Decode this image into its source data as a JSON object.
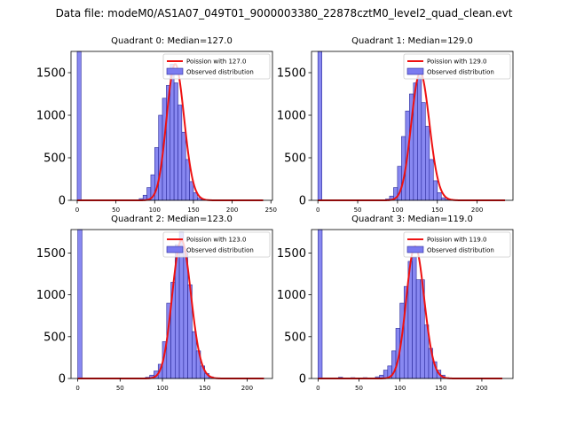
{
  "figure": {
    "title": "Data file: modeM0/AS1A07_049T01_9000003380_22878cztM0_level2_quad_clean.evt"
  },
  "colors": {
    "bar_fill": "#7b7bf0",
    "bar_edge": "#2a2a9a",
    "poisson_line": "#ee1111",
    "axis": "#000000"
  },
  "chart_data": [
    {
      "type": "bar",
      "title": "Quadrant 0: Median=127.0",
      "xlim": [
        -8,
        252
      ],
      "ylim": [
        0,
        1750
      ],
      "xticks": [
        0,
        50,
        100,
        150,
        200,
        250
      ],
      "yticks": [
        0,
        500,
        1000,
        1500
      ],
      "bin_width": 5,
      "series": [
        {
          "name": "Observed distribution",
          "type": "histogram",
          "bin_starts": [
            0,
            80,
            85,
            90,
            95,
            100,
            105,
            110,
            115,
            120,
            125,
            130,
            135,
            140,
            145,
            150,
            155,
            160
          ],
          "counts": [
            1750,
            20,
            60,
            150,
            300,
            620,
            1000,
            1200,
            1350,
            1600,
            1380,
            1120,
            800,
            480,
            220,
            90,
            30,
            10
          ]
        },
        {
          "name": "Poission with 127.0",
          "type": "poisson",
          "mean": 127.0,
          "peak": 1600,
          "x_range": [
            0,
            240
          ]
        }
      ],
      "legend": [
        "Poission with 127.0",
        "Observed distribution"
      ],
      "legend_loc": "upper right"
    },
    {
      "type": "bar",
      "title": "Quadrant 1: Median=129.0",
      "xlim": [
        -8,
        245
      ],
      "ylim": [
        0,
        1750
      ],
      "xticks": [
        0,
        50,
        100,
        150,
        200
      ],
      "yticks": [
        0,
        500,
        1000,
        1500
      ],
      "bin_width": 5,
      "series": [
        {
          "name": "Observed distribution",
          "type": "histogram",
          "bin_starts": [
            0,
            85,
            90,
            95,
            100,
            105,
            110,
            115,
            120,
            125,
            130,
            135,
            140,
            145,
            150,
            155,
            160,
            165
          ],
          "counts": [
            1750,
            15,
            50,
            150,
            400,
            750,
            1050,
            1250,
            1380,
            1450,
            1150,
            870,
            480,
            230,
            90,
            30,
            10,
            3
          ]
        },
        {
          "name": "Poission with 129.0",
          "type": "poisson",
          "mean": 129.0,
          "peak": 1500,
          "x_range": [
            0,
            235
          ]
        }
      ],
      "legend": [
        "Poission with 129.0",
        "Observed distribution"
      ],
      "legend_loc": "upper right"
    },
    {
      "type": "bar",
      "title": "Quadrant 2: Median=123.0",
      "xlim": [
        -8,
        230
      ],
      "ylim": [
        0,
        1780
      ],
      "xticks": [
        0,
        50,
        100,
        150,
        200
      ],
      "yticks": [
        0,
        500,
        1000,
        1500
      ],
      "bin_width": 5,
      "series": [
        {
          "name": "Observed distribution",
          "type": "histogram",
          "bin_starts": [
            0,
            80,
            85,
            90,
            95,
            100,
            105,
            110,
            115,
            120,
            125,
            130,
            135,
            140,
            145,
            150,
            155,
            160
          ],
          "counts": [
            1780,
            15,
            40,
            90,
            170,
            440,
            900,
            1150,
            1600,
            1750,
            1520,
            1120,
            560,
            330,
            150,
            60,
            20,
            5
          ]
        },
        {
          "name": "Poission with 123.0",
          "type": "poisson",
          "mean": 123.0,
          "peak": 1650,
          "x_range": [
            0,
            220
          ]
        }
      ],
      "legend": [
        "Poission with 123.0",
        "Observed distribution"
      ],
      "legend_loc": "upper right"
    },
    {
      "type": "bar",
      "title": "Quadrant 3: Median=119.0",
      "xlim": [
        -8,
        238
      ],
      "ylim": [
        0,
        1780
      ],
      "xticks": [
        0,
        50,
        100,
        150,
        200
      ],
      "yticks": [
        0,
        500,
        1000,
        1500
      ],
      "bin_width": 5,
      "series": [
        {
          "name": "Observed distribution",
          "type": "histogram",
          "bin_starts": [
            0,
            25,
            40,
            55,
            70,
            75,
            80,
            85,
            90,
            95,
            100,
            105,
            110,
            115,
            120,
            125,
            130,
            135,
            140,
            145,
            150,
            155
          ],
          "counts": [
            1780,
            15,
            10,
            10,
            20,
            40,
            100,
            150,
            330,
            600,
            900,
            1100,
            1400,
            1450,
            1180,
            1180,
            640,
            360,
            200,
            100,
            40,
            10
          ]
        },
        {
          "name": "Poission with 119.0",
          "type": "poisson",
          "mean": 119.0,
          "peak": 1580,
          "x_range": [
            0,
            225
          ]
        }
      ],
      "legend": [
        "Poission with 119.0",
        "Observed distribution"
      ],
      "legend_loc": "upper right"
    }
  ]
}
